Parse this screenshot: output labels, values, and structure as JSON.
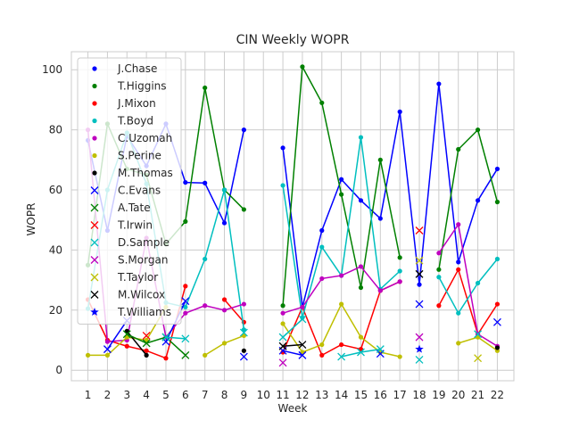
{
  "chart_data": {
    "type": "line",
    "title": "CIN Weekly WOPR",
    "xlabel": "Week",
    "ylabel": "WOPR",
    "x_ticks": [
      1,
      2,
      3,
      4,
      5,
      6,
      7,
      8,
      9,
      10,
      11,
      12,
      13,
      14,
      15,
      16,
      17,
      18,
      19,
      20,
      21,
      22
    ],
    "y_ticks": [
      0,
      20,
      40,
      60,
      80,
      100
    ],
    "xlim": [
      0.15,
      22.85
    ],
    "ylim": [
      -3.5,
      106
    ],
    "grid": true,
    "legend": "upper-left",
    "series": [
      {
        "name": "J.Chase",
        "color": "#0000ff",
        "marker": "dot",
        "x": [
          1,
          2,
          3,
          4,
          5,
          6,
          7,
          8,
          9,
          11,
          12,
          13,
          14,
          15,
          16,
          17,
          18,
          19,
          20,
          21,
          22
        ],
        "y": [
          76.5,
          46.5,
          78,
          68,
          82,
          62.5,
          62.3,
          49,
          80,
          74,
          21,
          46.5,
          63.5,
          56.5,
          50.5,
          86,
          28.5,
          95.3,
          36,
          56.5,
          67
        ]
      },
      {
        "name": "T.Higgins",
        "color": "#008000",
        "marker": "dot",
        "x": [
          1,
          2,
          3,
          4,
          5,
          6,
          7,
          8,
          9,
          11,
          12,
          13,
          14,
          15,
          16,
          17,
          19,
          20,
          21,
          22
        ],
        "y": [
          35,
          82,
          67,
          65,
          42,
          49.5,
          94,
          60,
          53.5,
          21.5,
          101,
          89,
          58.5,
          27.5,
          70,
          37.5,
          33.5,
          73.5,
          80,
          56
        ]
      },
      {
        "name": "J.Mixon",
        "color": "#ff0000",
        "marker": "dot",
        "x": [
          1,
          2,
          3,
          4,
          5,
          6,
          8,
          9,
          11,
          12,
          13,
          14,
          15,
          16,
          17,
          19,
          20,
          21,
          22
        ],
        "y": [
          23.5,
          10,
          8,
          6.5,
          4,
          28,
          23.5,
          16,
          6,
          21,
          5,
          8.5,
          7,
          26.5,
          29.5,
          21.5,
          33.5,
          12,
          22
        ]
      },
      {
        "name": "T.Boyd",
        "color": "#00bfbf",
        "marker": "dot",
        "x": [
          1,
          2,
          3,
          4,
          5,
          6,
          7,
          8,
          9,
          11,
          12,
          13,
          14,
          15,
          16,
          17,
          19,
          20,
          21,
          22
        ],
        "y": [
          20.5,
          60,
          79,
          62,
          22.5,
          21,
          37,
          60,
          13.5,
          61.5,
          17.5,
          41,
          31.5,
          77.5,
          27,
          33,
          31,
          19,
          29,
          37
        ]
      },
      {
        "name": "C.Uzomah",
        "color": "#bf00bf",
        "marker": "dot",
        "x": [
          1,
          2,
          3,
          4,
          5,
          6,
          7,
          8,
          9,
          11,
          12,
          13,
          14,
          15,
          16,
          17,
          19,
          20,
          21,
          22
        ],
        "y": [
          80,
          9.5,
          10,
          44,
          11,
          19,
          21.5,
          20,
          22,
          19,
          21,
          30.5,
          31.5,
          34.5,
          26.5,
          29.5,
          39,
          48.5,
          12,
          8
        ]
      },
      {
        "name": "S.Perine",
        "color": "#bfbf00",
        "marker": "dot",
        "x": [
          1,
          2,
          3,
          4,
          5,
          7,
          8,
          9,
          11,
          12,
          13,
          14,
          15,
          16,
          17,
          20,
          21,
          22
        ],
        "y": [
          5,
          5,
          11,
          10,
          21,
          5,
          9,
          11.5,
          15.5,
          6,
          8.5,
          22,
          11,
          6,
          4.5,
          9,
          11,
          6.5
        ]
      },
      {
        "name": "M.Thomas",
        "color": "#000000",
        "marker": "dot",
        "x": [
          3,
          4,
          9,
          22
        ],
        "y": [
          13,
          5,
          6.5,
          7.5
        ]
      },
      {
        "name": "C.Evans",
        "color": "#0000ff",
        "marker": "x",
        "x": [
          2,
          3,
          5,
          6,
          9,
          11,
          12,
          16,
          18,
          22
        ],
        "y": [
          7,
          16.5,
          9.5,
          23,
          4.5,
          6.5,
          5,
          5.5,
          22,
          16
        ]
      },
      {
        "name": "A.Tate",
        "color": "#008000",
        "marker": "x",
        "x": [
          3,
          4,
          5,
          6
        ],
        "y": [
          12,
          9,
          11,
          5
        ]
      },
      {
        "name": "T.Irwin",
        "color": "#ff0000",
        "marker": "x",
        "x": [
          4,
          18
        ],
        "y": [
          11.5,
          46.5
        ]
      },
      {
        "name": "D.Sample",
        "color": "#00bfbf",
        "marker": "x",
        "x": [
          5,
          6,
          9,
          11,
          12,
          14,
          15,
          16,
          18,
          21
        ],
        "y": [
          11,
          10.5,
          12.5,
          11,
          17,
          4.5,
          6,
          7,
          3.5,
          12
        ]
      },
      {
        "name": "S.Morgan",
        "color": "#bf00bf",
        "marker": "x",
        "x": [
          11,
          18
        ],
        "y": [
          2.5,
          11
        ]
      },
      {
        "name": "T.Taylor",
        "color": "#bfbf00",
        "marker": "x",
        "x": [
          18,
          21
        ],
        "y": [
          36.5,
          4
        ]
      },
      {
        "name": "M.Wilcox",
        "color": "#000000",
        "marker": "x",
        "x": [
          11,
          12,
          18
        ],
        "y": [
          8,
          8.5,
          32
        ]
      },
      {
        "name": "T.Williams",
        "color": "#0000ff",
        "marker": "star",
        "x": [
          18
        ],
        "y": [
          7
        ]
      }
    ]
  }
}
